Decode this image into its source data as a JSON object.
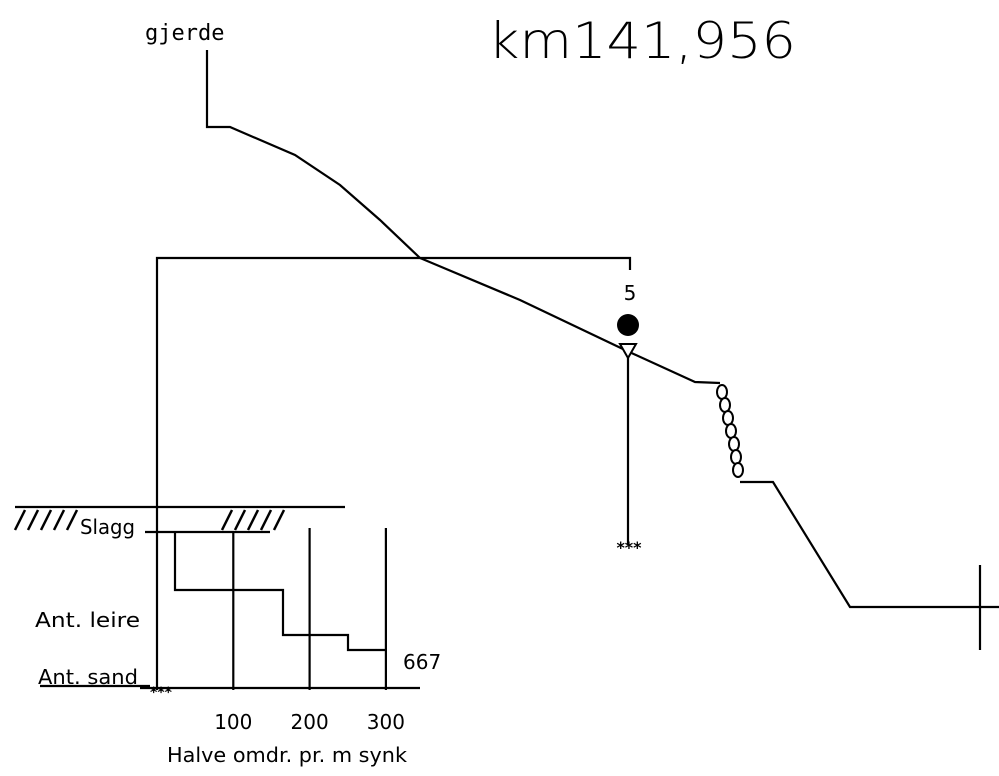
{
  "header": {
    "label": "gjerde",
    "station": "km141,956"
  },
  "borehole": {
    "number": "5"
  },
  "layers": [
    "Slagg",
    "Ant. leire",
    "Ant. sand"
  ],
  "end_value": "667",
  "x_axis": {
    "ticks": [
      100,
      200,
      300
    ],
    "label": "Halve omdr. pr. m synk"
  }
}
